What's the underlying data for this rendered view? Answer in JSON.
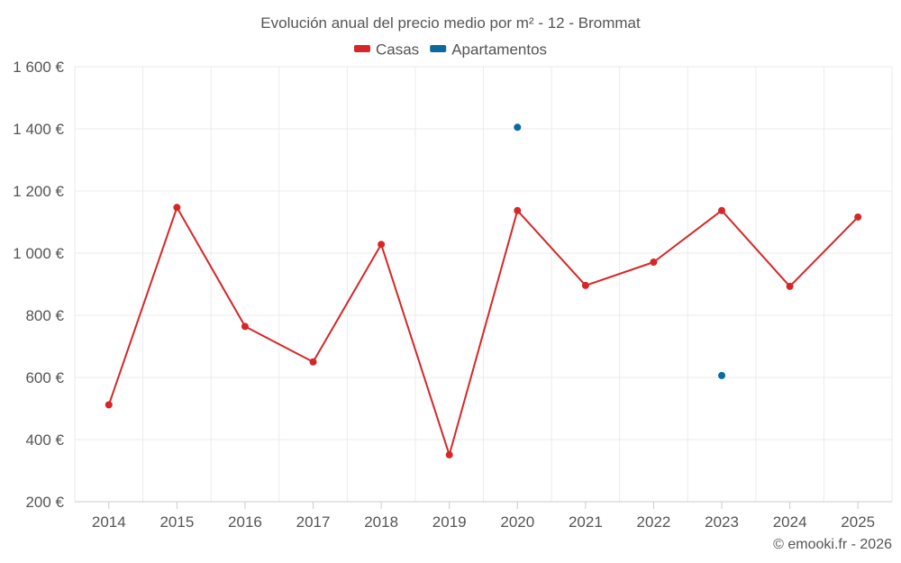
{
  "chart_data": {
    "type": "line",
    "title": "Evolución anual del precio medio por m² - 12 - Brommat",
    "categories": [
      "2014",
      "2015",
      "2016",
      "2017",
      "2018",
      "2019",
      "2020",
      "2021",
      "2022",
      "2023",
      "2024",
      "2025"
    ],
    "series": [
      {
        "name": "Casas",
        "color": "#d62728",
        "values": [
          512,
          1147,
          764,
          650,
          1028,
          351,
          1137,
          896,
          971,
          1137,
          893,
          1116
        ],
        "line": true
      },
      {
        "name": "Apartamentos",
        "color": "#0a6aa1",
        "values": [
          null,
          null,
          null,
          null,
          null,
          null,
          1405,
          null,
          null,
          606,
          null,
          null
        ],
        "line": false
      }
    ],
    "ylim": [
      200,
      1600
    ],
    "yticks": [
      200,
      400,
      600,
      800,
      1000,
      1200,
      1400,
      1600
    ],
    "ytick_labels": [
      "200 €",
      "400 €",
      "600 €",
      "800 €",
      "1 000 €",
      "1 200 €",
      "1 400 €",
      "1 600 €"
    ],
    "xlabel": "",
    "ylabel": "",
    "grid": true,
    "legend_position": "top-center"
  },
  "credit": "© emooki.fr - 2026"
}
